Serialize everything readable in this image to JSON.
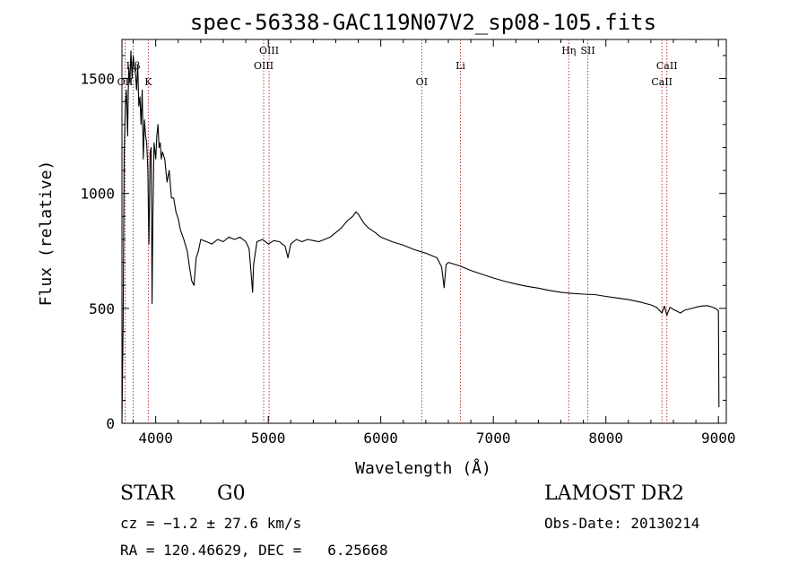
{
  "chart_data": {
    "type": "line",
    "title": "spec-56338-GAC119N07V2_sp08-105.fits",
    "xlabel": "Wavelength (Å)",
    "ylabel": "Flux (relative)",
    "xlim": [
      3700,
      9070
    ],
    "ylim": [
      0,
      1670
    ],
    "xticks": [
      4000,
      5000,
      6000,
      7000,
      8000,
      9000
    ],
    "yticks": [
      0,
      500,
      1000,
      1500
    ],
    "xtick_labels": [
      "4000",
      "5000",
      "6000",
      "7000",
      "8000",
      "9000"
    ],
    "ytick_labels": [
      "0",
      "500",
      "1000",
      "1500"
    ],
    "grid": false,
    "line_color": "#000000",
    "marker_color": "#b22222",
    "series": [
      {
        "x": [
          3700,
          3710,
          3720,
          3730,
          3740,
          3750,
          3760,
          3770,
          3780,
          3790,
          3800,
          3810,
          3820,
          3830,
          3840,
          3850,
          3860,
          3870,
          3880,
          3890,
          3900,
          3910,
          3920,
          3930,
          3940,
          3950,
          3960,
          3968,
          3975,
          3985,
          4000,
          4010,
          4020,
          4030,
          4040,
          4050,
          4060,
          4080,
          4101,
          4120,
          4140,
          4160,
          4180,
          4200,
          4220,
          4250,
          4280,
          4300,
          4320,
          4340,
          4360,
          4380,
          4400,
          4450,
          4500,
          4550,
          4600,
          4650,
          4700,
          4750,
          4800,
          4830,
          4850,
          4861,
          4870,
          4900,
          4950,
          5000,
          5050,
          5100,
          5150,
          5175,
          5200,
          5250,
          5300,
          5350,
          5400,
          5450,
          5500,
          5550,
          5600,
          5650,
          5700,
          5750,
          5780,
          5800,
          5850,
          5890,
          5950,
          6000,
          6100,
          6200,
          6300,
          6400,
          6500,
          6540,
          6563,
          6580,
          6600,
          6700,
          6800,
          6900,
          7000,
          7100,
          7200,
          7300,
          7400,
          7500,
          7600,
          7700,
          7800,
          7900,
          8000,
          8100,
          8200,
          8300,
          8400,
          8450,
          8498,
          8520,
          8542,
          8570,
          8600,
          8662,
          8700,
          8750,
          8800,
          8850,
          8900,
          8950,
          8980,
          9000,
          9005
        ],
        "y": [
          0,
          420,
          1180,
          1380,
          1450,
          1250,
          1550,
          1480,
          1620,
          1500,
          1600,
          1550,
          1520,
          1450,
          1560,
          1380,
          1420,
          1300,
          1450,
          1150,
          1320,
          1250,
          1220,
          1100,
          780,
          1180,
          1200,
          520,
          900,
          1220,
          1150,
          1250,
          1300,
          1200,
          1220,
          1150,
          1180,
          1150,
          1050,
          1100,
          980,
          980,
          920,
          890,
          840,
          800,
          750,
          680,
          620,
          600,
          720,
          750,
          800,
          790,
          780,
          800,
          790,
          810,
          800,
          810,
          790,
          760,
          640,
          570,
          690,
          790,
          800,
          780,
          795,
          790,
          770,
          720,
          780,
          800,
          790,
          800,
          795,
          790,
          800,
          810,
          830,
          850,
          880,
          900,
          920,
          910,
          870,
          850,
          830,
          810,
          790,
          775,
          755,
          740,
          720,
          680,
          590,
          690,
          700,
          685,
          665,
          648,
          632,
          618,
          606,
          596,
          588,
          578,
          570,
          565,
          562,
          560,
          552,
          545,
          538,
          528,
          515,
          505,
          480,
          510,
          470,
          505,
          495,
          480,
          492,
          498,
          505,
          510,
          512,
          505,
          498,
          490,
          70
        ]
      }
    ],
    "lines": [
      {
        "name": "Hβ",
        "wavelength": 3800,
        "tier": 1
      },
      {
        "name": "OII",
        "wavelength": 3728,
        "tier": 2
      },
      {
        "name": "K",
        "wavelength": 3934,
        "tier": 2
      },
      {
        "name": "OIII",
        "wavelength": 5007,
        "tier": 0
      },
      {
        "name": "OIII",
        "wavelength": 4959,
        "tier": 1
      },
      {
        "name": "OI",
        "wavelength": 6364,
        "tier": 2
      },
      {
        "name": "Li",
        "wavelength": 6708,
        "tier": 1
      },
      {
        "name": "Hη",
        "wavelength": 7670,
        "tier": 0
      },
      {
        "name": "SII",
        "wavelength": 7840,
        "tier": 0
      },
      {
        "name": "CaII",
        "wavelength": 8542,
        "tier": 1
      },
      {
        "name": "CaII",
        "wavelength": 8498,
        "tier": 2
      }
    ]
  },
  "info": {
    "object_class": "STAR",
    "subclass": "G0",
    "survey": "LAMOST DR2",
    "redshift": "cz = −1.2 ± 27.6 km/s",
    "obs_date": "Obs-Date: 20130214",
    "coords": "RA = 120.46629, DEC =   6.25668"
  }
}
